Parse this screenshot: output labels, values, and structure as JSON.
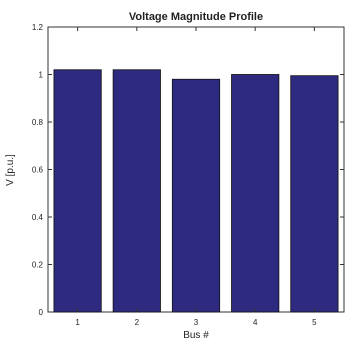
{
  "chart_data": {
    "type": "bar",
    "title": "Voltage Magnitude Profile",
    "xlabel": "Bus #",
    "ylabel": "V [p.u.]",
    "categories": [
      "1",
      "2",
      "3",
      "4",
      "5"
    ],
    "values": [
      1.02,
      1.02,
      0.98,
      1.0,
      0.995
    ],
    "ylim": [
      0,
      1.2
    ],
    "yticks": [
      "0",
      "0.2",
      "0.4",
      "0.6",
      "0.8",
      "1",
      "1.2"
    ],
    "grid": false,
    "legend": "none",
    "bar_color": "#2e2a80",
    "axis_color": "#333333"
  }
}
